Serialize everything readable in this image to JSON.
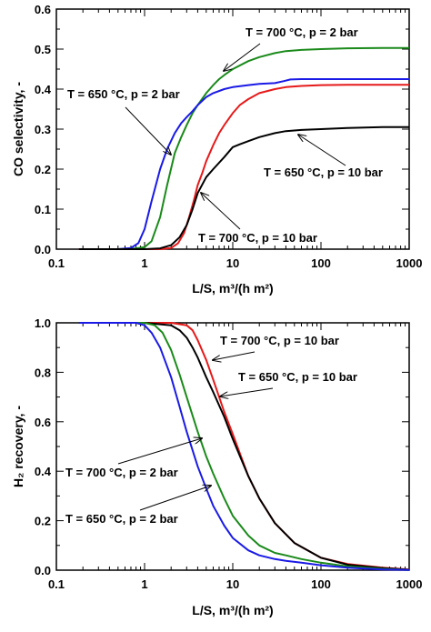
{
  "chart_data": [
    {
      "type": "line",
      "xlabel": "L/S, m³/(h m²)",
      "ylabel": "CO selectivity, -",
      "xscale": "log",
      "xlim": [
        0.1,
        1000
      ],
      "ylim": [
        0,
        0.6
      ],
      "xticks": [
        "0.1",
        "1",
        "10",
        "100",
        "1000"
      ],
      "yticks": [
        "0.0",
        "0.1",
        "0.2",
        "0.3",
        "0.4",
        "0.5",
        "0.6"
      ],
      "grid": false,
      "legend": "none",
      "series": [
        {
          "name": "T = 700 °C, p = 2 bar",
          "color": "#1a8a1a",
          "x": [
            0.18,
            0.5,
            0.8,
            1.0,
            1.2,
            1.5,
            1.8,
            2.2,
            2.6,
            3.0,
            3.5,
            4,
            5,
            6,
            7,
            8,
            10,
            15,
            20,
            30,
            40,
            60,
            100,
            200,
            500,
            1000
          ],
          "y": [
            0.0,
            0.0,
            0.002,
            0.005,
            0.02,
            0.08,
            0.16,
            0.24,
            0.28,
            0.31,
            0.34,
            0.36,
            0.39,
            0.41,
            0.425,
            0.435,
            0.45,
            0.47,
            0.48,
            0.49,
            0.495,
            0.498,
            0.5,
            0.502,
            0.503,
            0.503
          ]
        },
        {
          "name": "T = 650 °C, p = 2 bar",
          "color": "#1a1ae6",
          "x": [
            0.18,
            0.5,
            0.7,
            0.85,
            1.0,
            1.2,
            1.5,
            1.8,
            2.2,
            2.6,
            3.0,
            3.5,
            4,
            5,
            6,
            8,
            10,
            15,
            20,
            30,
            38,
            45,
            60,
            100,
            200,
            500,
            1000
          ],
          "y": [
            0.0,
            0.0,
            0.003,
            0.015,
            0.05,
            0.12,
            0.2,
            0.25,
            0.29,
            0.315,
            0.33,
            0.345,
            0.36,
            0.38,
            0.39,
            0.4,
            0.405,
            0.41,
            0.413,
            0.415,
            0.42,
            0.424,
            0.425,
            0.425,
            0.425,
            0.425,
            0.425
          ]
        },
        {
          "name": "T = 700 °C, p = 10 bar",
          "color": "#e61a1a",
          "x": [
            0.18,
            1.0,
            1.5,
            2.0,
            2.4,
            2.8,
            3.2,
            3.6,
            4,
            4.5,
            5,
            6,
            7,
            8,
            10,
            12,
            15,
            20,
            30,
            40,
            60,
            100,
            200,
            500,
            1000
          ],
          "y": [
            0.0,
            0.0,
            0.0,
            0.003,
            0.015,
            0.04,
            0.08,
            0.12,
            0.16,
            0.19,
            0.22,
            0.26,
            0.29,
            0.31,
            0.34,
            0.36,
            0.375,
            0.39,
            0.4,
            0.405,
            0.408,
            0.41,
            0.411,
            0.411,
            0.411
          ]
        },
        {
          "name": "T = 650 °C, p = 10 bar",
          "color": "#000000",
          "x": [
            0.18,
            1.0,
            1.5,
            2.0,
            2.5,
            3.0,
            3.5,
            4,
            5,
            6,
            8,
            10,
            12,
            15,
            20,
            30,
            40,
            60,
            100,
            200,
            500,
            1000
          ],
          "y": [
            0.0,
            0.0,
            0.002,
            0.01,
            0.03,
            0.06,
            0.1,
            0.14,
            0.18,
            0.2,
            0.23,
            0.255,
            0.262,
            0.27,
            0.28,
            0.29,
            0.295,
            0.298,
            0.3,
            0.303,
            0.305,
            0.305
          ]
        }
      ],
      "annotations": [
        {
          "text": "T = 700 °C, p = 2 bar"
        },
        {
          "text": "T = 650 °C, p = 2 bar"
        },
        {
          "text": "T = 650 °C, p = 10 bar"
        },
        {
          "text": "T = 700 °C, p = 10 bar"
        }
      ]
    },
    {
      "type": "line",
      "xlabel": "L/S, m³/(h m²)",
      "ylabel": "H₂ recovery, -",
      "xscale": "log",
      "xlim": [
        0.1,
        1000
      ],
      "ylim": [
        0,
        1.0
      ],
      "xticks": [
        "0.1",
        "1",
        "10",
        "100",
        "1000"
      ],
      "yticks": [
        "0.0",
        "0.2",
        "0.4",
        "0.6",
        "0.8",
        "1.0"
      ],
      "grid": false,
      "legend": "none",
      "series": [
        {
          "name": "T = 700 °C, p = 10 bar",
          "color": "#e61a1a",
          "x": [
            0.18,
            1,
            2,
            3,
            3.5,
            4,
            5,
            6,
            8,
            10,
            15,
            20,
            30,
            50,
            100,
            200,
            500,
            1000
          ],
          "y": [
            1.0,
            1.0,
            1.0,
            0.99,
            0.97,
            0.93,
            0.85,
            0.77,
            0.64,
            0.55,
            0.38,
            0.29,
            0.19,
            0.11,
            0.05,
            0.025,
            0.01,
            0.003
          ]
        },
        {
          "name": "T = 650 °C, p = 10 bar",
          "color": "#000000",
          "x": [
            0.18,
            1,
            2,
            2.5,
            3,
            3.5,
            4,
            5,
            6,
            8,
            10,
            15,
            20,
            30,
            50,
            100,
            200,
            500,
            1000
          ],
          "y": [
            1.0,
            1.0,
            0.99,
            0.97,
            0.94,
            0.9,
            0.86,
            0.78,
            0.72,
            0.62,
            0.53,
            0.38,
            0.29,
            0.19,
            0.11,
            0.05,
            0.022,
            0.008,
            0.002
          ]
        },
        {
          "name": "T = 700 °C, p = 2 bar",
          "color": "#1a8a1a",
          "x": [
            0.18,
            1,
            1.3,
            1.6,
            2,
            2.5,
            3,
            4,
            5,
            6,
            8,
            10,
            15,
            20,
            30,
            40,
            60,
            100,
            200,
            500,
            1000
          ],
          "y": [
            1.0,
            1.0,
            0.99,
            0.96,
            0.89,
            0.79,
            0.7,
            0.56,
            0.46,
            0.39,
            0.29,
            0.22,
            0.14,
            0.1,
            0.07,
            0.06,
            0.045,
            0.03,
            0.015,
            0.005,
            0.001
          ]
        },
        {
          "name": "T = 650 °C, p = 2 bar",
          "color": "#1a1ae6",
          "x": [
            0.18,
            0.8,
            1.0,
            1.2,
            1.5,
            2,
            2.5,
            3,
            4,
            5,
            6,
            8,
            10,
            15,
            20,
            30,
            40,
            60,
            100,
            200,
            500,
            1000
          ],
          "y": [
            1.0,
            1.0,
            0.99,
            0.96,
            0.9,
            0.78,
            0.66,
            0.56,
            0.42,
            0.33,
            0.26,
            0.18,
            0.13,
            0.08,
            0.06,
            0.045,
            0.038,
            0.03,
            0.02,
            0.01,
            0.003,
            0.001
          ]
        }
      ],
      "annotations": [
        {
          "text": "T = 700 °C, p = 10 bar"
        },
        {
          "text": "T = 650 °C, p = 10 bar"
        },
        {
          "text": "T = 700 °C, p = 2 bar"
        },
        {
          "text": "T = 650 °C, p = 2 bar"
        }
      ]
    }
  ]
}
